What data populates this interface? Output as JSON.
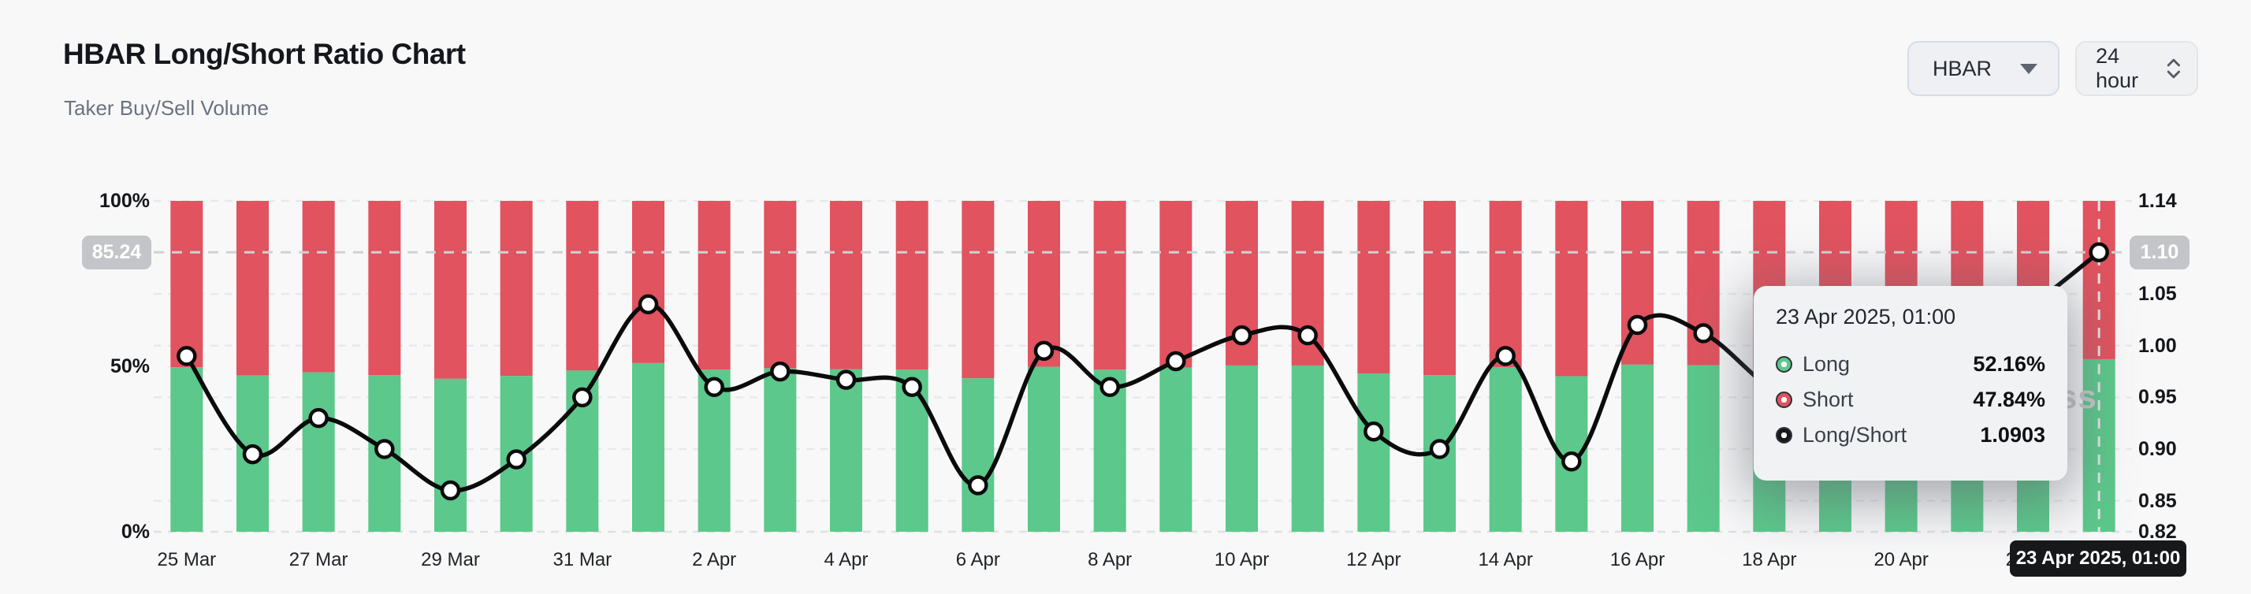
{
  "header": {
    "title": "HBAR Long/Short Ratio Chart",
    "subtitle": "Taker Buy/Sell Volume"
  },
  "controls": {
    "symbol_select": {
      "value": "HBAR",
      "icon": "caret-down"
    },
    "interval_select": {
      "value": "24 hour",
      "icon": "unfold-chevrons"
    }
  },
  "watermark": "coinglass",
  "axes": {
    "left_ticks": [
      {
        "label": "100%",
        "percent": 100
      },
      {
        "label": "50%",
        "percent": 50
      },
      {
        "label": "0%",
        "percent": 0
      }
    ],
    "right_ticks": [
      {
        "label": "1.14",
        "value": 1.14
      },
      {
        "label": "1.05",
        "value": 1.05
      },
      {
        "label": "1.00",
        "value": 1.0
      },
      {
        "label": "0.95",
        "value": 0.95
      },
      {
        "label": "0.90",
        "value": 0.9
      },
      {
        "label": "0.85",
        "value": 0.85
      },
      {
        "label": "0.82",
        "value": 0.82
      }
    ],
    "x_ticks": [
      "25 Mar",
      "27 Mar",
      "29 Mar",
      "31 Mar",
      "2 Apr",
      "4 Apr",
      "6 Apr",
      "8 Apr",
      "10 Apr",
      "12 Apr",
      "14 Apr",
      "16 Apr",
      "18 Apr",
      "20 Apr",
      "22 Apr"
    ]
  },
  "crosshair": {
    "left_badge": "85.24",
    "right_badge": "1.10",
    "date_badge": "23 Apr 2025, 01:00",
    "value": 1.0903,
    "highlight_index": 29
  },
  "tooltip": {
    "title": "23 Apr 2025, 01:00",
    "rows": [
      {
        "label": "Long",
        "value": "52.16%",
        "color": "#5cc88b"
      },
      {
        "label": "Short",
        "value": "47.84%",
        "color": "#e0535f"
      },
      {
        "label": "Long/Short",
        "value": "1.0903",
        "color": "#17181a"
      }
    ]
  },
  "chart_data": {
    "type": "bar+line",
    "stacked_bars": true,
    "title": "HBAR Long/Short Ratio Chart",
    "categories": [
      "25 Mar",
      "26 Mar",
      "27 Mar",
      "28 Mar",
      "29 Mar",
      "30 Mar",
      "31 Mar",
      "1 Apr",
      "2 Apr",
      "3 Apr",
      "4 Apr",
      "5 Apr",
      "6 Apr",
      "7 Apr",
      "8 Apr",
      "9 Apr",
      "10 Apr",
      "11 Apr",
      "12 Apr",
      "13 Apr",
      "14 Apr",
      "15 Apr",
      "16 Apr",
      "17 Apr",
      "18 Apr",
      "19 Apr",
      "20 Apr",
      "21 Apr",
      "22 Apr",
      "23 Apr"
    ],
    "series": [
      {
        "name": "Long",
        "type": "bar",
        "unit": "%",
        "color": "#5cc88b",
        "values": [
          49.75,
          47.23,
          48.19,
          47.37,
          46.24,
          47.09,
          48.72,
          50.98,
          48.98,
          49.37,
          49.16,
          48.98,
          46.38,
          49.87,
          48.98,
          49.62,
          50.25,
          50.25,
          47.84,
          47.37,
          49.75,
          47.03,
          50.5,
          50.3,
          48.98,
          48.19,
          48.72,
          50.0,
          50.98,
          52.16
        ]
      },
      {
        "name": "Short",
        "type": "bar",
        "unit": "%",
        "color": "#e0535f",
        "values": [
          50.25,
          52.77,
          51.81,
          52.63,
          53.76,
          52.91,
          51.28,
          49.02,
          51.02,
          50.63,
          50.84,
          51.02,
          53.62,
          50.13,
          51.02,
          50.38,
          49.75,
          49.75,
          52.16,
          52.63,
          50.25,
          52.97,
          49.5,
          49.7,
          51.02,
          51.81,
          51.28,
          50.0,
          49.02,
          47.84
        ]
      },
      {
        "name": "Long/Short",
        "type": "line",
        "axis": "right",
        "color": "#0b0b0c",
        "values": [
          0.99,
          0.895,
          0.93,
          0.9,
          0.86,
          0.89,
          0.95,
          1.04,
          0.96,
          0.975,
          0.967,
          0.96,
          0.865,
          0.995,
          0.96,
          0.985,
          1.01,
          1.01,
          0.917,
          0.9,
          0.99,
          0.888,
          1.02,
          1.012,
          0.96,
          0.93,
          0.95,
          1.0,
          1.04,
          1.0903
        ]
      }
    ],
    "left_axis": {
      "range": [
        0,
        100
      ],
      "ticks": [
        0,
        50,
        100
      ],
      "unit": "%"
    },
    "right_axis": {
      "range": [
        0.82,
        1.14
      ],
      "ticks": [
        0.85,
        0.9,
        0.95,
        1.0,
        1.05,
        1.14
      ],
      "baseline": 0.82
    },
    "grid": "horizontal-dashed",
    "legend_position": "none",
    "x_tick_every": 2
  },
  "colors": {
    "background": "#f8f8f9",
    "long_green": "#5cc88b",
    "short_red": "#e0535f",
    "line_black": "#0b0b0c",
    "grid_line": "#e8e9eb",
    "axis_baseline": "#dfe0e2",
    "crosshair_h": "#cfd1d4",
    "crosshair_v": "#e2e3e5",
    "badge_gray": "#c4c5c8",
    "date_badge_bg": "#17181a"
  }
}
